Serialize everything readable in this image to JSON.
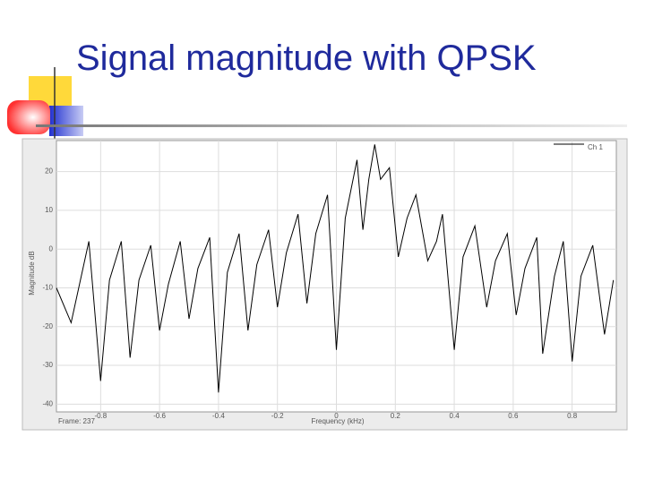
{
  "title": "Signal magnitude with QPSK",
  "chart_data": {
    "type": "line",
    "ylabel": "Magnitude dB",
    "xlabel": "Frequency (kHz)",
    "frame_label": "Frame: 237",
    "x": [
      -0.95,
      -0.9,
      -0.84,
      -0.8,
      -0.77,
      -0.73,
      -0.7,
      -0.67,
      -0.63,
      -0.6,
      -0.57,
      -0.53,
      -0.5,
      -0.47,
      -0.43,
      -0.4,
      -0.37,
      -0.33,
      -0.3,
      -0.27,
      -0.23,
      -0.2,
      -0.17,
      -0.13,
      -0.1,
      -0.07,
      -0.03,
      0,
      0.03,
      0.07,
      0.09,
      0.11,
      0.13,
      0.15,
      0.18,
      0.21,
      0.24,
      0.27,
      0.31,
      0.34,
      0.36,
      0.4,
      0.43,
      0.47,
      0.51,
      0.54,
      0.58,
      0.61,
      0.64,
      0.68,
      0.7,
      0.74,
      0.77,
      0.8,
      0.83,
      0.87,
      0.91,
      0.94
    ],
    "series": [
      {
        "name": "Ch 1",
        "color": "#000000",
        "values": [
          -10,
          -19,
          2,
          -34,
          -8,
          2,
          -28,
          -8,
          1,
          -21,
          -9,
          2,
          -18,
          -5,
          3,
          -37,
          -6,
          4,
          -21,
          -4,
          5,
          -15,
          -1,
          9,
          -14,
          4,
          14,
          -26,
          8,
          23,
          5,
          18,
          27,
          18,
          21,
          -2,
          8,
          14,
          -3,
          2,
          9,
          -26,
          -2,
          6,
          -15,
          -3,
          4,
          -17,
          -5,
          3,
          -27,
          -7,
          2,
          -29,
          -7,
          1,
          -22,
          -8
        ]
      }
    ],
    "xlim": [
      -0.95,
      0.95
    ],
    "ylim": [
      -42,
      28
    ],
    "xticks": [
      -0.8,
      -0.6,
      -0.4,
      -0.2,
      0,
      0.2,
      0.4,
      0.6,
      0.8
    ],
    "yticks": [
      20,
      10,
      0,
      -10,
      -20,
      -30,
      -40
    ],
    "grid": true,
    "legend": "upper right"
  }
}
